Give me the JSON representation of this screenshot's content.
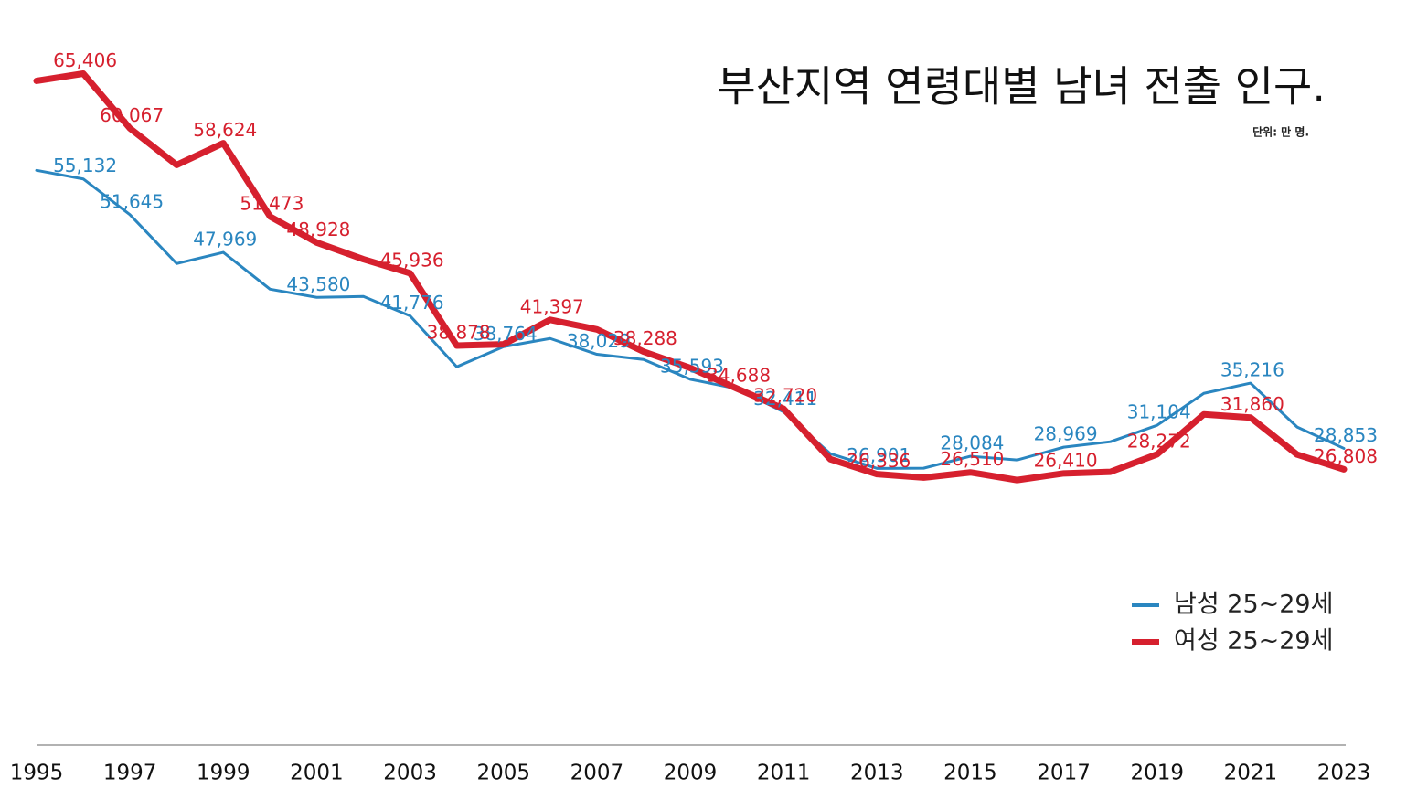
{
  "chart_data": {
    "type": "line",
    "title": "부산지역 연령대별 남녀 전출 인구.",
    "subtitle": "단위: 만 명.",
    "x": [
      1995,
      1996,
      1997,
      1998,
      1999,
      2000,
      2001,
      2002,
      2003,
      2004,
      2005,
      2006,
      2007,
      2008,
      2009,
      2010,
      2011,
      2012,
      2013,
      2014,
      2015,
      2016,
      2017,
      2018,
      2019,
      2020,
      2021,
      2022,
      2023
    ],
    "xlim": [
      1995,
      2023
    ],
    "xticks": [
      1995,
      1997,
      1999,
      2001,
      2003,
      2005,
      2007,
      2009,
      2011,
      2013,
      2015,
      2017,
      2019,
      2021,
      2023
    ],
    "ylim": [
      0,
      70000
    ],
    "legend": "right",
    "series": [
      {
        "name": "남성 25~29세",
        "color": "#2a86c0",
        "width": 3,
        "values": [
          55970,
          55132,
          51645,
          46880,
          47969,
          44380,
          43580,
          43670,
          41776,
          36810,
          38764,
          39570,
          38029,
          37520,
          35593,
          34670,
          32411,
          28340,
          26901,
          26920,
          28084,
          27720,
          28969,
          29500,
          31104,
          34220,
          35216,
          30930,
          28853
        ],
        "value_labels": [
          null,
          "55,132",
          "51,645",
          null,
          "47,969",
          null,
          "43,580",
          null,
          "41,776",
          null,
          "38,764",
          null,
          "38,029",
          null,
          "35,593",
          null,
          "32,411",
          null,
          "26,901",
          null,
          "28,084",
          null,
          "28,969",
          null,
          "31,104",
          null,
          "35,216",
          null,
          "28,853"
        ]
      },
      {
        "name": "여성 25~29세",
        "color": "#d6202e",
        "width": 7,
        "values": [
          64700,
          65406,
          60067,
          56500,
          58624,
          51473,
          48928,
          47300,
          45936,
          38878,
          39000,
          41397,
          40460,
          38288,
          36700,
          34688,
          32720,
          27800,
          26336,
          26000,
          26510,
          25760,
          26410,
          26560,
          28272,
          32170,
          31860,
          28250,
          26808
        ],
        "value_labels": [
          null,
          "65,406",
          "60,067",
          null,
          "58,624",
          "51,473",
          "48,928",
          null,
          "45,936",
          "38,878",
          null,
          "41,397",
          null,
          "38,288",
          null,
          "34,688",
          "32,720",
          null,
          "26,336",
          null,
          "26,510",
          null,
          "26,410",
          null,
          "28,272",
          null,
          "31,860",
          null,
          "26,808"
        ]
      }
    ]
  }
}
